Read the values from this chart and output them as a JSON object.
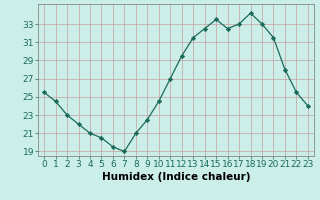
{
  "x": [
    0,
    1,
    2,
    3,
    4,
    5,
    6,
    7,
    8,
    9,
    10,
    11,
    12,
    13,
    14,
    15,
    16,
    17,
    18,
    19,
    20,
    21,
    22,
    23
  ],
  "y": [
    25.5,
    24.5,
    23.0,
    22.0,
    21.0,
    20.5,
    19.5,
    19.0,
    21.0,
    22.5,
    24.5,
    27.0,
    29.5,
    31.5,
    32.5,
    33.5,
    32.5,
    33.0,
    34.2,
    33.0,
    31.5,
    28.0,
    25.5,
    24.0
  ],
  "line_color": "#1a6b5a",
  "marker": "D",
  "marker_size": 2.2,
  "bg_color": "#cceee8",
  "grid_color": "#c8a0a0",
  "xlabel": "Humidex (Indice chaleur)",
  "ylabel": "",
  "title": "",
  "xlim": [
    -0.5,
    23.5
  ],
  "ylim": [
    18.5,
    35.2
  ],
  "yticks": [
    19,
    21,
    23,
    25,
    27,
    29,
    31,
    33
  ],
  "xticks": [
    0,
    1,
    2,
    3,
    4,
    5,
    6,
    7,
    8,
    9,
    10,
    11,
    12,
    13,
    14,
    15,
    16,
    17,
    18,
    19,
    20,
    21,
    22,
    23
  ],
  "xtick_labels": [
    "0",
    "1",
    "2",
    "3",
    "4",
    "5",
    "6",
    "7",
    "8",
    "9",
    "10",
    "11",
    "12",
    "13",
    "14",
    "15",
    "16",
    "17",
    "18",
    "19",
    "20",
    "21",
    "22",
    "23"
  ],
  "font_size": 6.5,
  "xlabel_fontsize": 7.5,
  "tick_color": "#1a6b5a"
}
